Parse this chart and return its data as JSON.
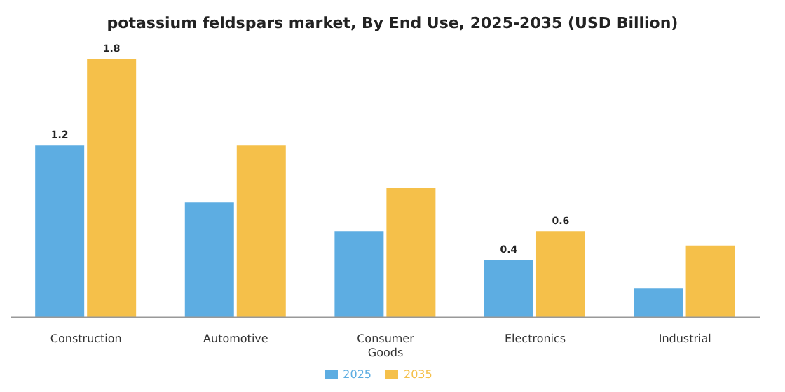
{
  "chart_data": {
    "type": "bar",
    "title": "potassium feldspars market, By End Use, 2025-2035 (USD Billion)",
    "categories": [
      "Construction",
      "Automotive",
      "Consumer Goods",
      "Electronics",
      "Industrial"
    ],
    "series": [
      {
        "name": "2025",
        "color": "#5dade2",
        "values": [
          1.2,
          0.8,
          0.6,
          0.4,
          0.2
        ],
        "value_labels": [
          "1.2",
          null,
          null,
          "0.4",
          null
        ]
      },
      {
        "name": "2035",
        "color": "#f5c04a",
        "values": [
          1.8,
          1.2,
          0.9,
          0.6,
          0.5
        ],
        "value_labels": [
          "1.8",
          null,
          null,
          "0.6",
          null
        ]
      }
    ],
    "tick_labels": "x",
    "grid": false,
    "legend": "bottom"
  }
}
